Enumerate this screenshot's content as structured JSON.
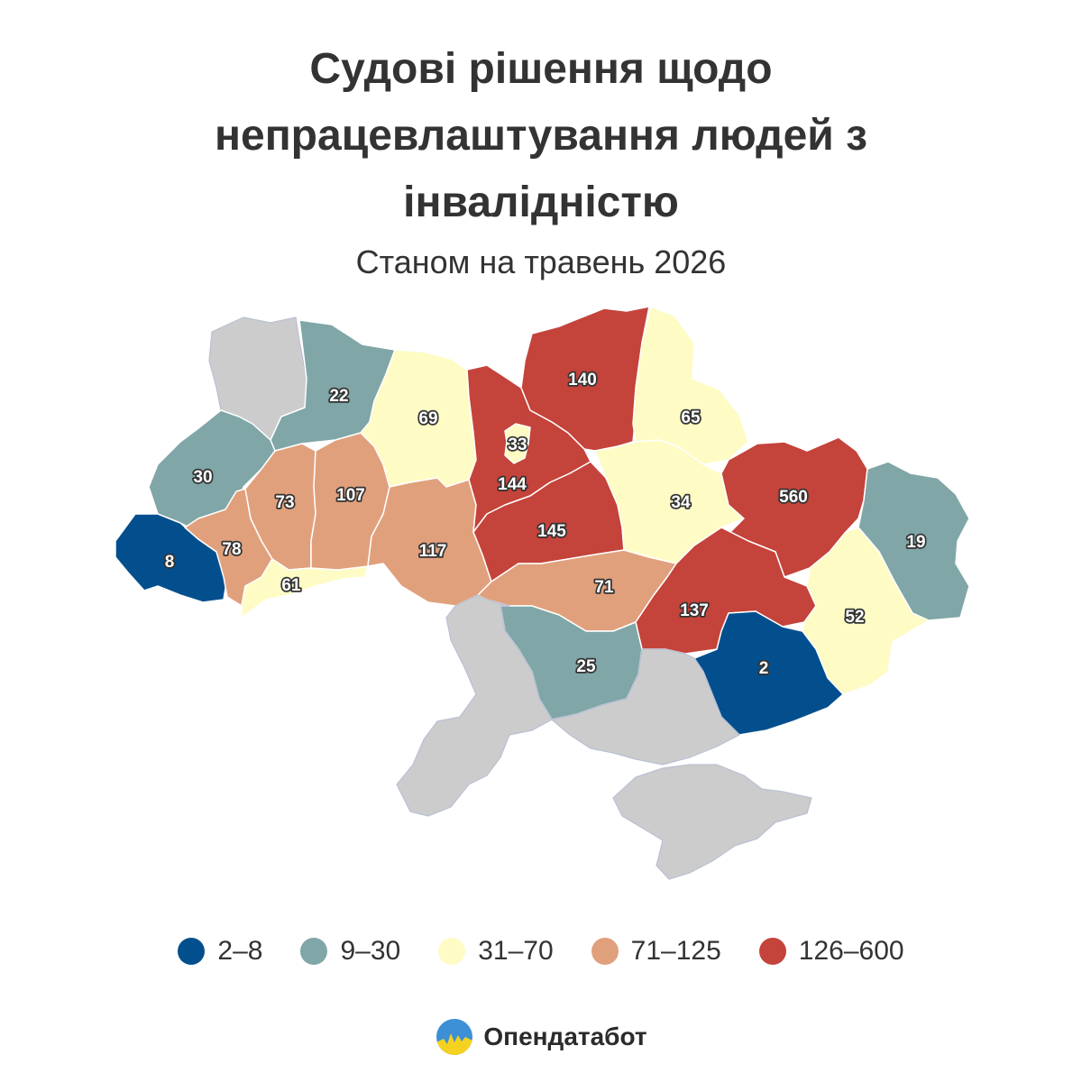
{
  "title": "Судові рішення щодо непрацевлаштування людей з інвалідністю",
  "subtitle": "Станом на травень 2026",
  "colors": {
    "c1": "#034f8e",
    "c2": "#80a6a7",
    "c3": "#fefbc4",
    "c4": "#e1a07c",
    "c5": "#c4433a",
    "occupied": "#cccccc"
  },
  "regions": [
    {
      "id": "volyn",
      "value": "",
      "bin": "none"
    },
    {
      "id": "rivne",
      "value": "22",
      "bin": "c2"
    },
    {
      "id": "lviv",
      "value": "30",
      "bin": "c2"
    },
    {
      "id": "zakarpattia",
      "value": "8",
      "bin": "c1"
    },
    {
      "id": "ivano-frankivsk",
      "value": "78",
      "bin": "c4"
    },
    {
      "id": "ternopil",
      "value": "73",
      "bin": "c4"
    },
    {
      "id": "chernivtsi",
      "value": "61",
      "bin": "c3"
    },
    {
      "id": "khmelnytskyi",
      "value": "107",
      "bin": "c4"
    },
    {
      "id": "zhytomyr",
      "value": "69",
      "bin": "c3"
    },
    {
      "id": "vinnytsia",
      "value": "117",
      "bin": "c4"
    },
    {
      "id": "kyiv-oblast",
      "value": "144",
      "bin": "c5"
    },
    {
      "id": "kyiv-city",
      "value": "33",
      "bin": "c3"
    },
    {
      "id": "chernihiv",
      "value": "140",
      "bin": "c5"
    },
    {
      "id": "sumy",
      "value": "65",
      "bin": "c3"
    },
    {
      "id": "cherkasy",
      "value": "145",
      "bin": "c5"
    },
    {
      "id": "poltava",
      "value": "34",
      "bin": "c3"
    },
    {
      "id": "kharkiv",
      "value": "560",
      "bin": "c5"
    },
    {
      "id": "luhansk",
      "value": "19",
      "bin": "c2"
    },
    {
      "id": "kirovohrad",
      "value": "71",
      "bin": "c4"
    },
    {
      "id": "dnipropetrovsk",
      "value": "137",
      "bin": "c5"
    },
    {
      "id": "donetsk",
      "value": "52",
      "bin": "c3"
    },
    {
      "id": "mykolaiv",
      "value": "25",
      "bin": "c2"
    },
    {
      "id": "zaporizhzhia",
      "value": "2",
      "bin": "c1"
    },
    {
      "id": "odesa",
      "value": "",
      "bin": "none"
    },
    {
      "id": "kherson",
      "value": "",
      "bin": "none"
    },
    {
      "id": "crimea",
      "value": "",
      "bin": "none"
    }
  ],
  "legend": [
    {
      "label": "2–8",
      "color": "#034f8e"
    },
    {
      "label": "9–30",
      "color": "#80a6a7"
    },
    {
      "label": "31–70",
      "color": "#fefbc4"
    },
    {
      "label": "71–125",
      "color": "#e1a07c"
    },
    {
      "label": "126–600",
      "color": "#c4433a"
    }
  ],
  "brand": {
    "name": "Опендатабот",
    "logo": "sun-mountain-logo-icon"
  }
}
